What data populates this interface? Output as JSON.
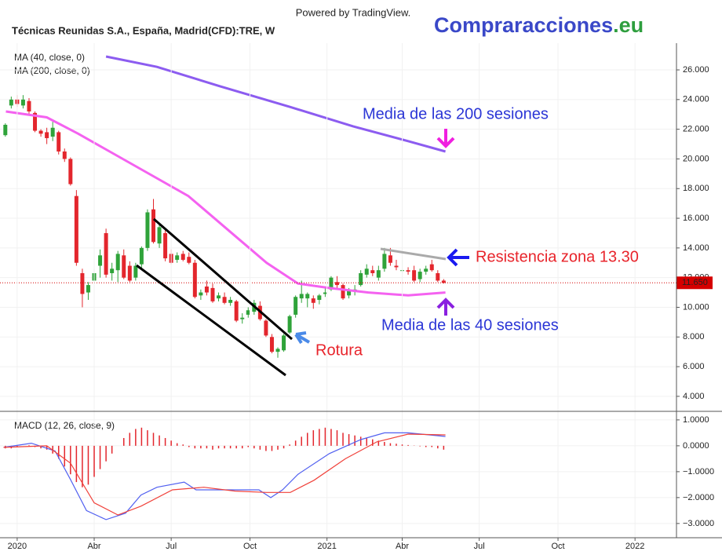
{
  "header": {
    "powered_by": "Powered by TradingView.",
    "brand": "Compraracciones",
    "brand_suffix": ".eu"
  },
  "chart_data": [
    {
      "type": "candlestick",
      "title": "Técnicas Reunidas S.A., España, Madrid(CFD):TRE, W",
      "x": [
        -2,
        -1,
        0,
        1,
        2,
        3,
        4,
        5,
        6,
        7,
        8,
        9,
        10,
        11,
        12,
        13,
        14,
        15,
        16,
        17,
        18,
        19,
        20,
        21,
        22,
        23,
        24,
        25,
        26,
        27,
        28,
        29,
        30,
        31,
        32,
        33,
        34,
        35,
        36,
        37,
        38,
        39,
        40,
        41,
        42,
        43,
        44,
        45,
        46,
        47,
        48,
        49,
        50,
        51,
        52,
        53,
        54,
        55,
        56,
        57,
        58,
        59,
        60,
        61,
        62,
        63,
        64,
        65,
        66,
        67,
        68,
        69,
        70,
        71,
        72
      ],
      "open": [
        21.6,
        23.6,
        24.0,
        23.6,
        23.9,
        23.1,
        21.9,
        21.8,
        21.5,
        21.8,
        20.5,
        20.0,
        17.5,
        12.3,
        11.0,
        11.8,
        12.8,
        15.0,
        12.3,
        12.5,
        13.5,
        12.8,
        12.0,
        12.9,
        14.0,
        16.6,
        14.3,
        15.0,
        13.6,
        13.2,
        13.6,
        13.4,
        13.0,
        10.8,
        11.4,
        11.3,
        10.6,
        10.7,
        10.3,
        10.4,
        9.2,
        9.5,
        9.7,
        10.1,
        9.1,
        8.0,
        7.0,
        7.1,
        8.3,
        9.5,
        10.6,
        10.6,
        10.6,
        10.5,
        10.9,
        11.2,
        11.7,
        11.5,
        10.8,
        11.1,
        11.5,
        12.2,
        12.5,
        12.0,
        12.6,
        13.5,
        12.8,
        12.5,
        12.5,
        12.5,
        11.9,
        12.4,
        12.9,
        12.3,
        11.8
      ],
      "high": [
        22.4,
        24.2,
        24.3,
        24.3,
        24.1,
        23.2,
        22.0,
        22.1,
        22.5,
        21.9,
        20.7,
        20.1,
        17.9,
        12.6,
        11.7,
        12.6,
        13.9,
        15.3,
        13.0,
        13.8,
        13.9,
        13.1,
        13.0,
        14.1,
        16.6,
        17.3,
        15.6,
        15.2,
        13.9,
        13.7,
        13.8,
        13.7,
        13.2,
        11.2,
        11.8,
        11.6,
        11.0,
        11.0,
        10.7,
        10.5,
        9.6,
        10.0,
        10.5,
        10.4,
        9.2,
        8.2,
        7.3,
        8.2,
        9.5,
        10.8,
        11.8,
        11.0,
        10.8,
        10.9,
        11.3,
        12.1,
        12.1,
        11.6,
        11.3,
        11.5,
        12.5,
        12.9,
        12.8,
        12.8,
        14.0,
        14.0,
        13.2,
        13.2,
        12.7,
        12.8,
        12.6,
        12.8,
        13.2,
        12.5,
        11.9
      ],
      "low": [
        21.5,
        23.4,
        23.5,
        23.4,
        23.0,
        21.8,
        21.5,
        21.0,
        21.2,
        20.3,
        19.8,
        18.2,
        12.8,
        10.0,
        10.5,
        11.6,
        12.0,
        12.0,
        11.8,
        11.7,
        11.9,
        11.7,
        11.8,
        12.6,
        13.8,
        14.3,
        14.0,
        13.1,
        12.9,
        13.0,
        13.1,
        12.9,
        10.6,
        10.5,
        10.8,
        10.3,
        10.4,
        10.2,
        10.1,
        9.0,
        8.9,
        9.3,
        9.5,
        9.1,
        8.0,
        6.9,
        6.6,
        7.0,
        8.2,
        9.3,
        10.3,
        10.0,
        9.9,
        10.2,
        10.7,
        11.1,
        11.3,
        10.5,
        10.6,
        10.8,
        11.4,
        12.0,
        12.1,
        11.8,
        12.4,
        12.8,
        12.5,
        12.3,
        12.2,
        11.7,
        11.7,
        12.2,
        12.4,
        11.7,
        11.6
      ],
      "close": [
        22.3,
        24.0,
        23.7,
        24.0,
        23.2,
        21.9,
        21.7,
        21.4,
        22.1,
        20.5,
        20.0,
        18.3,
        13.0,
        10.9,
        11.5,
        12.3,
        13.5,
        12.2,
        12.6,
        13.6,
        12.0,
        11.8,
        12.8,
        14.0,
        16.4,
        14.4,
        15.4,
        13.3,
        13.0,
        13.5,
        13.2,
        13.0,
        10.7,
        11.0,
        11.0,
        10.4,
        10.8,
        10.3,
        10.5,
        9.1,
        9.3,
        9.8,
        10.3,
        9.2,
        8.1,
        7.0,
        7.2,
        8.1,
        9.4,
        10.7,
        10.9,
        10.9,
        10.3,
        10.8,
        11.0,
        12.0,
        11.5,
        10.6,
        11.1,
        11.2,
        12.3,
        12.6,
        12.3,
        12.5,
        13.6,
        13.0,
        12.7,
        12.5,
        12.4,
        11.8,
        12.4,
        12.6,
        12.5,
        11.8,
        11.65
      ],
      "up_color": "#2fa33a",
      "down_color": "#e3262d",
      "xlim": [
        -2.9,
        111.3
      ],
      "ylim": [
        3.2,
        27.8
      ],
      "yticks": [
        {
          "value": 4,
          "label": "4.000"
        },
        {
          "value": 6,
          "label": "6.000"
        },
        {
          "value": 8,
          "label": "8.000"
        },
        {
          "value": 10,
          "label": "10.000"
        },
        {
          "value": 12,
          "label": "12.000"
        },
        {
          "value": 14,
          "label": "14.000"
        },
        {
          "value": 16,
          "label": "16.000"
        },
        {
          "value": 18,
          "label": "18.000"
        },
        {
          "value": 20,
          "label": "20.000"
        },
        {
          "value": 22,
          "label": "22.000"
        },
        {
          "value": 24,
          "label": "24.000"
        },
        {
          "value": 26,
          "label": "26.000"
        }
      ],
      "grid": true,
      "last_price": {
        "value": 11.65,
        "label": "11.650",
        "color": "#d50000"
      },
      "series": [
        {
          "name": "MA (40, close, 0)",
          "color": "#f462f0",
          "x": [
            -1.9,
            5,
            10.3,
            19.6,
            28.9,
            36.8,
            42.1,
            47.4,
            52.7,
            59.3,
            66,
            72.3
          ],
          "values": [
            23.2,
            22.8,
            21.7,
            19.6,
            17.5,
            14.8,
            13.0,
            11.6,
            11.3,
            11.0,
            10.8,
            11.0
          ]
        },
        {
          "name": "MA (200, close, 0)",
          "color": "#8c5cf0",
          "x": [
            15,
            23.6,
            34.2,
            46.1,
            56.7,
            66,
            72.3
          ],
          "values": [
            26.9,
            26.2,
            24.9,
            23.5,
            22.2,
            21.2,
            20.5
          ]
        }
      ],
      "annotations": [
        "Media de las 200 sesiones",
        "Resistencia zona 13.30",
        "Media de las 40 sesiones",
        "Rotura"
      ]
    },
    {
      "type": "macd",
      "title": "MACD (12, 26, close, 9)",
      "xlim": [
        -2.9,
        111.3
      ],
      "ylim": [
        -3.55,
        1.33
      ],
      "xticks": [
        {
          "value": 0,
          "label": "2020"
        },
        {
          "value": 13,
          "label": "Abr"
        },
        {
          "value": 26,
          "label": "Jul"
        },
        {
          "value": 39.3,
          "label": "Oct"
        },
        {
          "value": 52.3,
          "label": "2021"
        },
        {
          "value": 65,
          "label": "Abr"
        },
        {
          "value": 78,
          "label": "Jul"
        },
        {
          "value": 91.3,
          "label": "Oct"
        },
        {
          "value": 104.3,
          "label": "2022"
        }
      ],
      "yticks": [
        {
          "value": 1,
          "label": "1.0000"
        },
        {
          "value": 0,
          "label": "0.0000"
        },
        {
          "value": -1,
          "label": "−1.0000"
        },
        {
          "value": -2,
          "label": "−2.0000"
        },
        {
          "value": -3,
          "label": "−3.0000"
        }
      ],
      "grid": true,
      "histogram": {
        "color": "#e3262d",
        "x": [
          -2,
          -1,
          0,
          1,
          2,
          3,
          4,
          5,
          6,
          7,
          8,
          9,
          10,
          11,
          12,
          13,
          14,
          15,
          16,
          17,
          18,
          19,
          20,
          21,
          22,
          23,
          24,
          25,
          26,
          27,
          28,
          29,
          30,
          31,
          32,
          33,
          34,
          35,
          36,
          37,
          38,
          39,
          40,
          41,
          42,
          43,
          44,
          45,
          46,
          47,
          48,
          49,
          50,
          51,
          52,
          53,
          54,
          55,
          56,
          57,
          58,
          59,
          60,
          61,
          62,
          63,
          64,
          65,
          66,
          67,
          68,
          69,
          70,
          71,
          72
        ],
        "values": [
          -0.1,
          -0.1,
          -0.05,
          0,
          0.02,
          -0.05,
          -0.1,
          -0.15,
          -0.3,
          -0.5,
          -0.8,
          -1.1,
          -1.4,
          -1.6,
          -1.5,
          -1.2,
          -0.9,
          -0.6,
          -0.3,
          0,
          0.3,
          0.5,
          0.65,
          0.7,
          0.6,
          0.5,
          0.4,
          0.3,
          0.2,
          0.1,
          0.05,
          -0.05,
          -0.1,
          -0.1,
          -0.1,
          -0.15,
          -0.1,
          -0.1,
          -0.1,
          -0.1,
          -0.1,
          -0.05,
          -0.1,
          -0.15,
          -0.2,
          -0.2,
          -0.15,
          -0.1,
          0.05,
          0.2,
          0.35,
          0.5,
          0.6,
          0.65,
          0.7,
          0.65,
          0.6,
          0.5,
          0.45,
          0.4,
          0.35,
          0.3,
          0.25,
          0.2,
          0.15,
          0.1,
          0.08,
          0.05,
          0.03,
          0.01,
          -0.02,
          -0.05,
          -0.05,
          -0.1,
          -0.15
        ]
      },
      "series": [
        {
          "color": "#5160f0",
          "x": [
            -2.3,
            2.4,
            6.4,
            9,
            11.7,
            15,
            18.3,
            20.9,
            23.6,
            28.2,
            30.2,
            36.8,
            40.8,
            42.8,
            44.8,
            47.4,
            52.7,
            58,
            62,
            66,
            72.3
          ],
          "values": [
            -0.06,
            0.1,
            -0.2,
            -1.3,
            -2.5,
            -2.85,
            -2.6,
            -1.9,
            -1.6,
            -1.4,
            -1.7,
            -1.7,
            -1.7,
            -2.0,
            -1.7,
            -1.1,
            -0.3,
            0.24,
            0.5,
            0.5,
            0.36
          ]
        },
        {
          "color": "#f0413a",
          "x": [
            -2.3,
            5,
            9,
            13,
            17,
            20.9,
            26.2,
            31.5,
            36.8,
            42.1,
            46.1,
            50.1,
            55.4,
            60.7,
            66,
            72.3
          ],
          "values": [
            -0.06,
            0,
            -0.67,
            -2.2,
            -2.67,
            -2.33,
            -1.7,
            -1.6,
            -1.75,
            -1.8,
            -1.8,
            -1.33,
            -0.5,
            0.15,
            0.45,
            0.42
          ]
        }
      ]
    }
  ]
}
